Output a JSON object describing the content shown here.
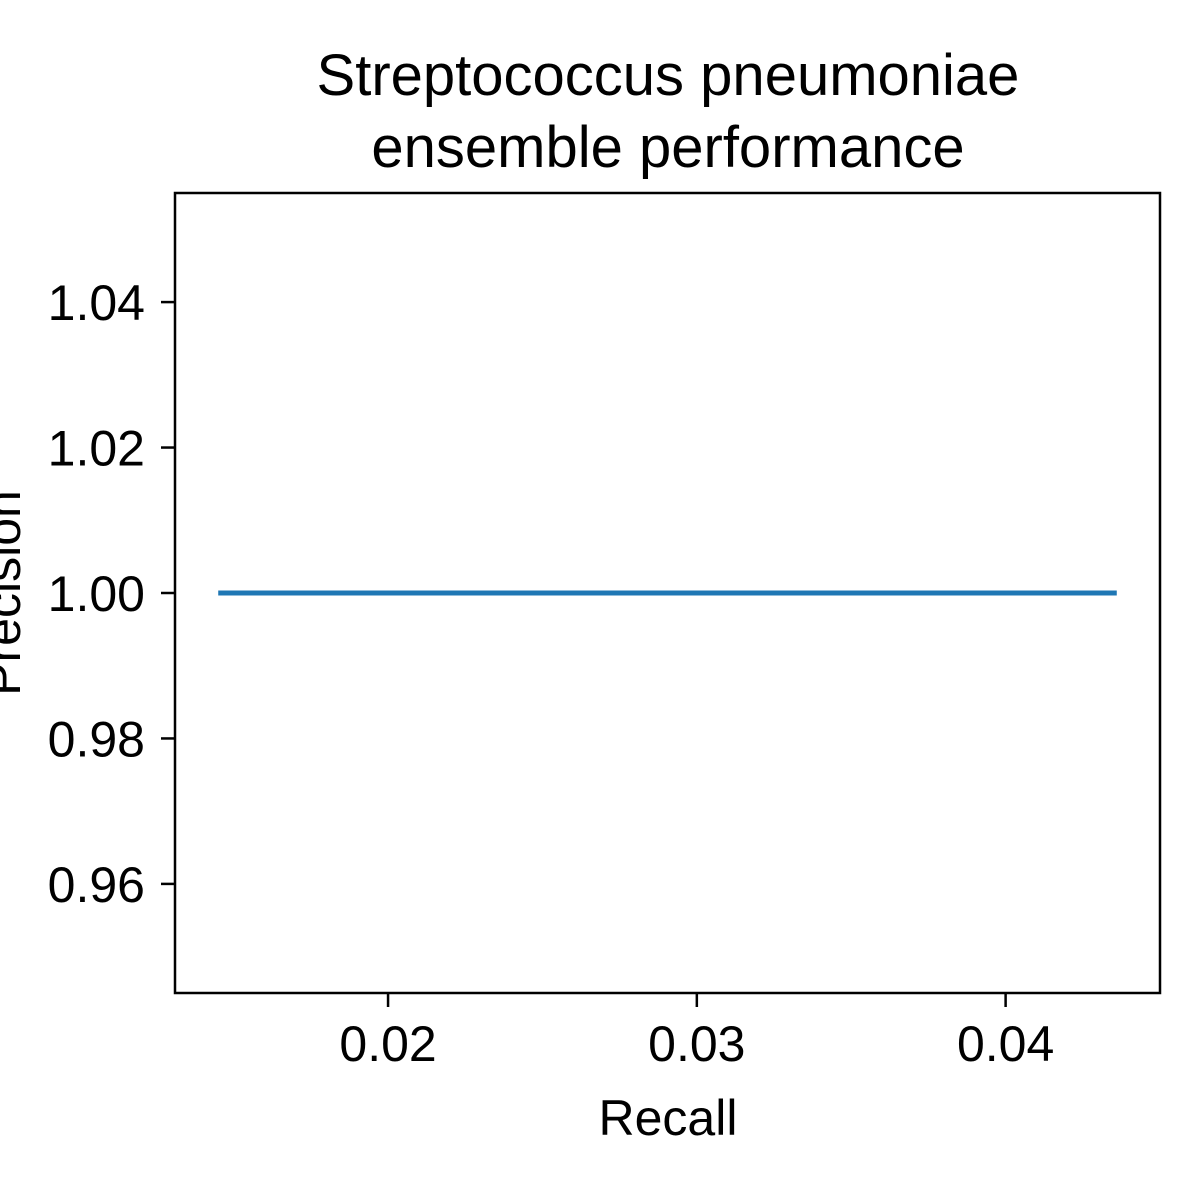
{
  "chart_data": {
    "type": "line",
    "title_lines": [
      "Streptococcus pneumoniae",
      "ensemble performance"
    ],
    "xlabel": "Recall",
    "ylabel": "Precision",
    "xlim": [
      0.0131,
      0.045
    ],
    "ylim": [
      0.945,
      1.055
    ],
    "x_ticks": [
      0.02,
      0.03,
      0.04
    ],
    "x_tick_labels": [
      "0.02",
      "0.03",
      "0.04"
    ],
    "y_ticks": [
      0.96,
      0.98,
      1.0,
      1.02,
      1.04
    ],
    "y_tick_labels": [
      "0.96",
      "0.98",
      "1.00",
      "1.02",
      "1.04"
    ],
    "grid": false,
    "series": [
      {
        "color": "#1f77b4",
        "x": [
          0.0145,
          0.0436
        ],
        "y": [
          1.0,
          1.0
        ]
      }
    ]
  }
}
